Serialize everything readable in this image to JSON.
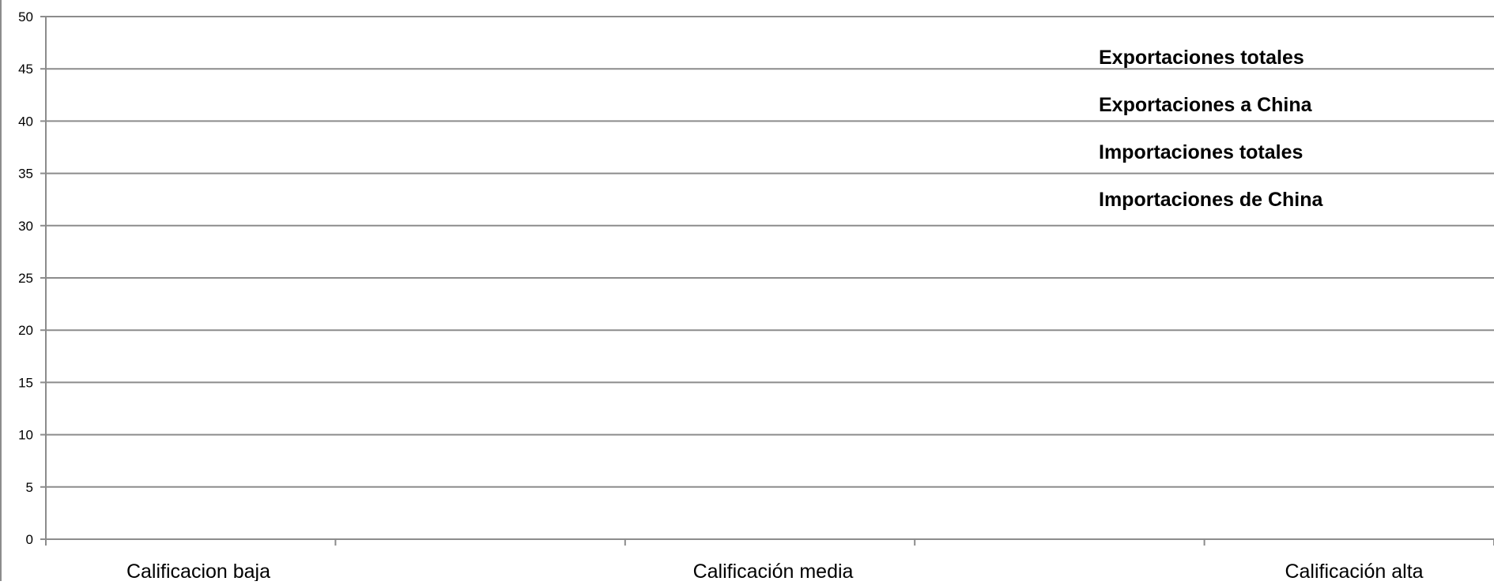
{
  "chart_data": {
    "type": "bar",
    "title": "",
    "xlabel": "",
    "ylabel": "",
    "categories": [
      "Calificacion baja",
      "Calificación media",
      "Calificación alta"
    ],
    "yticks": [
      "0",
      "5",
      "10",
      "15",
      "20",
      "25",
      "30",
      "35",
      "40",
      "45",
      "50"
    ],
    "ylim": [
      0,
      50
    ],
    "grid": true,
    "legend_position": "top-right",
    "series": [
      {
        "name": "Exportaciones totales",
        "values": [
          null,
          null,
          null
        ]
      },
      {
        "name": "Exportaciones a China",
        "values": [
          null,
          null,
          null
        ]
      },
      {
        "name": "Importaciones totales",
        "values": [
          null,
          null,
          null
        ]
      },
      {
        "name": "Importaciones de China",
        "values": [
          null,
          null,
          null
        ]
      }
    ]
  },
  "colors": {
    "gridline": "#8c8c8c",
    "axis": "#8c8c8c",
    "text": "#000000",
    "background": "#ffffff"
  }
}
